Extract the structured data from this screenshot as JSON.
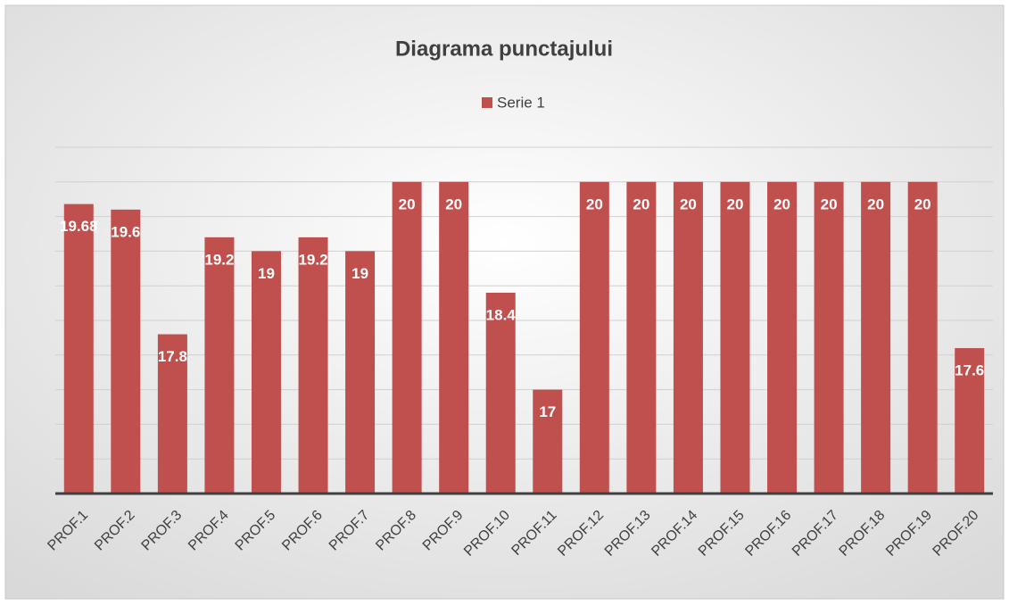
{
  "chart_data": {
    "type": "bar",
    "title": "Diagrama punctajului",
    "categories": [
      "PROF.1",
      "PROF.2",
      "PROF.3",
      "PROF.4",
      "PROF.5",
      "PROF.6",
      "PROF.7",
      "PROF.8",
      "PROF.9",
      "PROF.10",
      "PROF.11",
      "PROF.12",
      "PROF.13",
      "PROF.14",
      "PROF.15",
      "PROF.16",
      "PROF.17",
      "PROF.18",
      "PROF.19",
      "PROF.20"
    ],
    "series": [
      {
        "name": "Serie 1",
        "color": "#c0504d",
        "values": [
          19.68,
          19.6,
          17.8,
          19.2,
          19,
          19.2,
          19,
          20,
          20,
          18.4,
          17,
          20,
          20,
          20,
          20,
          20,
          20,
          20,
          20,
          17.6
        ]
      }
    ],
    "ylim": [
      15.5,
      20.5
    ],
    "yticks": [
      15.5,
      16,
      16.5,
      17,
      17.5,
      18,
      18.5,
      19,
      19.5,
      20,
      20.5
    ],
    "grid": true,
    "legend": "top"
  }
}
